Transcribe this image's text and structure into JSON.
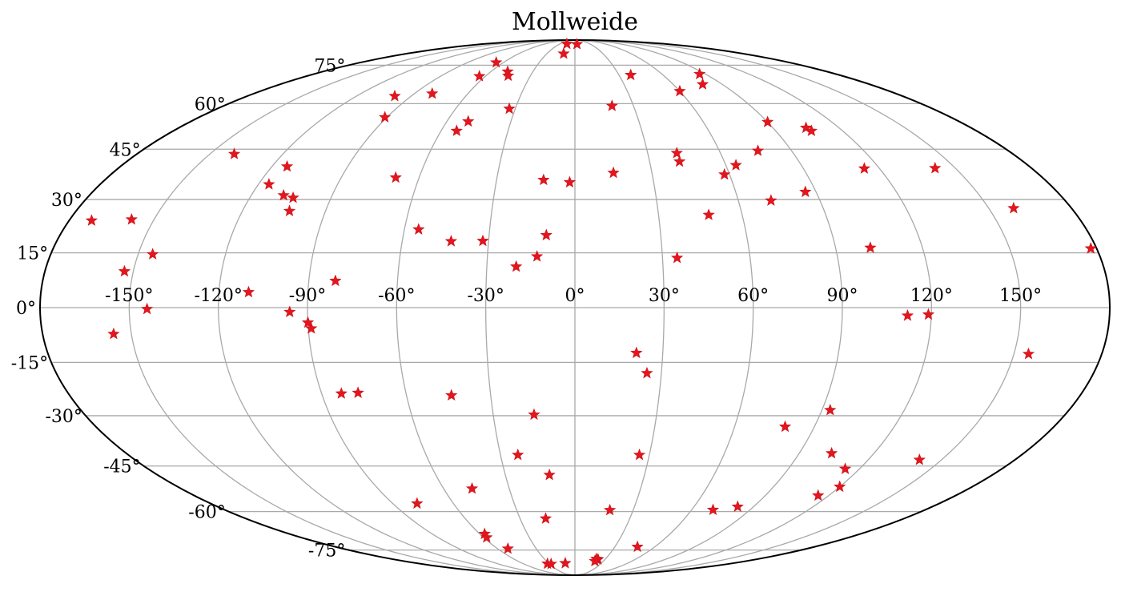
{
  "chart_data": {
    "type": "scatter",
    "projection": "mollweide",
    "title": "Mollweide",
    "grid": true,
    "marker": "star",
    "marker_color": "#e3161e",
    "grid_color": "#a9a9a9",
    "xlim": [
      -180,
      180
    ],
    "ylim": [
      -90,
      90
    ],
    "x_ticks": [
      -150,
      -120,
      -90,
      -60,
      -30,
      0,
      30,
      60,
      90,
      120,
      150
    ],
    "x_tick_labels": [
      "-150°",
      "-120°",
      "-90°",
      "-60°",
      "-30°",
      "0°",
      "30°",
      "60°",
      "90°",
      "120°",
      "150°"
    ],
    "y_ticks": [
      -75,
      -60,
      -45,
      -30,
      -15,
      0,
      15,
      30,
      45,
      60,
      75
    ],
    "y_tick_labels": [
      "-75°",
      "-60°",
      "-45°",
      "-30°",
      "-15°",
      "0°",
      "15°",
      "30°",
      "45°",
      "60°",
      "75°"
    ],
    "points": [
      {
        "lon": -172,
        "lat": 24.0
      },
      {
        "lon": -158,
        "lat": 24.3
      },
      {
        "lon": -153,
        "lat": 9.9
      },
      {
        "lon": -145,
        "lat": 14.6
      },
      {
        "lon": -140,
        "lat": 43.5
      },
      {
        "lon": -144,
        "lat": -0.4
      },
      {
        "lon": -156,
        "lat": -7.2
      },
      {
        "lon": -114,
        "lat": 39.7
      },
      {
        "lon": -116,
        "lat": 34.4
      },
      {
        "lon": -108,
        "lat": 31.2
      },
      {
        "lon": -104,
        "lat": 30.5
      },
      {
        "lon": -103,
        "lat": 26.7
      },
      {
        "lon": -110,
        "lat": 4.2
      },
      {
        "lon": -99,
        "lat": 62.7
      },
      {
        "lon": -91,
        "lat": 55.3
      },
      {
        "lon": -80,
        "lat": 63.6
      },
      {
        "lon": -69,
        "lat": 36.4
      },
      {
        "lon": -96,
        "lat": -1.2
      },
      {
        "lon": -90,
        "lat": -4.1
      },
      {
        "lon": -89,
        "lat": -5.7
      },
      {
        "lon": -81,
        "lat": 7.3
      },
      {
        "lon": -83,
        "lat": -23.7
      },
      {
        "lon": -77,
        "lat": -23.5
      },
      {
        "lon": -78,
        "lat": -57.2
      },
      {
        "lon": -66,
        "lat": 76.2
      },
      {
        "lon": -64,
        "lat": 70.3
      },
      {
        "lon": -48,
        "lat": 72.2
      },
      {
        "lon": -45,
        "lat": 70.5
      },
      {
        "lon": -50,
        "lat": 53.9
      },
      {
        "lon": -53,
        "lat": 50.8
      },
      {
        "lon": -33,
        "lat": 58.2
      },
      {
        "lon": -55,
        "lat": 21.5
      },
      {
        "lon": -43,
        "lat": 18.2
      },
      {
        "lon": -32,
        "lat": 18.3
      },
      {
        "lon": -20,
        "lat": 11.2
      },
      {
        "lon": -13,
        "lat": 14.0
      },
      {
        "lon": -10,
        "lat": 19.9
      },
      {
        "lon": -12,
        "lat": 35.7
      },
      {
        "lon": -2,
        "lat": 35.0
      },
      {
        "lon": -16,
        "lat": 86.3
      },
      {
        "lon": -12,
        "lat": 80.5
      },
      {
        "lon": 4,
        "lat": 86.1
      },
      {
        "lon": 19,
        "lat": 59.2
      },
      {
        "lon": 38,
        "lat": 70.8
      },
      {
        "lon": 15,
        "lat": 37.8
      },
      {
        "lon": 42,
        "lat": 43.8
      },
      {
        "lon": 42,
        "lat": 41.2
      },
      {
        "lon": 48,
        "lat": 25.6
      },
      {
        "lon": 35,
        "lat": 13.6
      },
      {
        "lon": 58,
        "lat": 37.3
      },
      {
        "lon": 64,
        "lat": 40.1
      },
      {
        "lon": 60,
        "lat": 64.5
      },
      {
        "lon": 86,
        "lat": 71.2
      },
      {
        "lon": 78,
        "lat": 67.1
      },
      {
        "lon": 76,
        "lat": 44.5
      },
      {
        "lon": 72,
        "lat": 29.7
      },
      {
        "lon": 86,
        "lat": 32.2
      },
      {
        "lon": 90,
        "lat": 53.7
      },
      {
        "lon": 105,
        "lat": 51.8
      },
      {
        "lon": 106,
        "lat": 50.8
      },
      {
        "lon": 114,
        "lat": 39.1
      },
      {
        "lon": 142,
        "lat": 39.2
      },
      {
        "lon": 159,
        "lat": 27.5
      },
      {
        "lon": 178,
        "lat": 16.2
      },
      {
        "lon": 102,
        "lat": 16.4
      },
      {
        "lon": 112,
        "lat": -2.2
      },
      {
        "lon": 119,
        "lat": -1.9
      },
      {
        "lon": 155,
        "lat": -12.7
      },
      {
        "lon": 21,
        "lat": -12.4
      },
      {
        "lon": 25,
        "lat": -18.0
      },
      {
        "lon": 93,
        "lat": -28.4
      },
      {
        "lon": 79,
        "lat": -33.2
      },
      {
        "lon": 103,
        "lat": -41.1
      },
      {
        "lon": 114,
        "lat": -45.9
      },
      {
        "lon": 141,
        "lat": -43.1
      },
      {
        "lon": 120,
        "lat": -51.6
      },
      {
        "lon": 115,
        "lat": -54.5
      },
      {
        "lon": 82,
        "lat": -58.3
      },
      {
        "lon": 71,
        "lat": -59.4
      },
      {
        "lon": 47,
        "lat": -73.6
      },
      {
        "lon": 26,
        "lat": -41.6
      },
      {
        "lon": 18,
        "lat": -59.5
      },
      {
        "lon": 23,
        "lat": -79.4
      },
      {
        "lon": 21,
        "lat": -79.2
      },
      {
        "lon": 21,
        "lat": -80.3
      },
      {
        "lon": -44,
        "lat": -24.2
      },
      {
        "lon": -15,
        "lat": -29.7
      },
      {
        "lon": -23,
        "lat": -41.6
      },
      {
        "lon": -11,
        "lat": -47.8
      },
      {
        "lon": -47,
        "lat": -52.2
      },
      {
        "lon": -16,
        "lat": -62.5
      },
      {
        "lon": -57,
        "lat": -68.3
      },
      {
        "lon": -58,
        "lat": -69.7
      },
      {
        "lon": -52,
        "lat": -74.4
      },
      {
        "lon": -32,
        "lat": -81.7
      },
      {
        "lon": -28,
        "lat": -81.8
      },
      {
        "lon": -11,
        "lat": -81.4
      }
    ]
  }
}
